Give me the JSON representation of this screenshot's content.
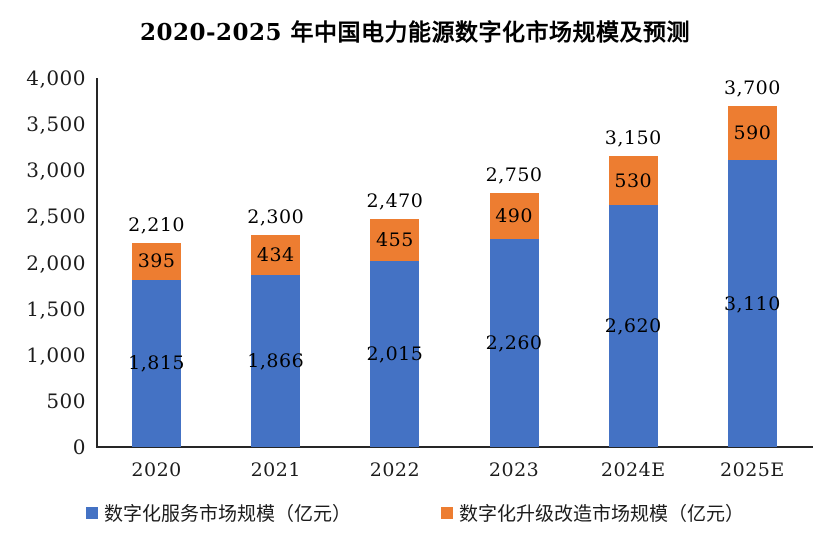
{
  "chart_data": {
    "type": "bar",
    "stacked": true,
    "title": "2020-2025 年中国电力能源数字化市场规模及预测",
    "categories": [
      "2020",
      "2021",
      "2022",
      "2023",
      "2024E",
      "2025E"
    ],
    "series": [
      {
        "name": "数字化服务市场规模（亿元）",
        "color": "#4472C4",
        "values": [
          1815,
          1866,
          2015,
          2260,
          2620,
          3110
        ],
        "labels": [
          "1,815",
          "1,866",
          "2,015",
          "2,260",
          "2,620",
          "3,110"
        ]
      },
      {
        "name": "数字化升级改造市场规模（亿元）",
        "color": "#ED7D31",
        "values": [
          395,
          434,
          455,
          490,
          530,
          590
        ],
        "labels": [
          "395",
          "434",
          "455",
          "490",
          "530",
          "590"
        ]
      }
    ],
    "totals": [
      2210,
      2300,
      2470,
      2750,
      3150,
      3700
    ],
    "total_labels": [
      "2,210",
      "2,300",
      "2,470",
      "2,750",
      "3,150",
      "3,700"
    ],
    "xlabel": "",
    "ylabel": "",
    "ylim": [
      0,
      4000
    ],
    "ytick_step": 500,
    "ytick_labels": [
      "0",
      "500",
      "1,000",
      "1,500",
      "2,000",
      "2,500",
      "3,000",
      "3,500",
      "4,000"
    ],
    "grid": false,
    "legend_position": "bottom",
    "axis_color": "#262626",
    "label_color": "#000000"
  }
}
